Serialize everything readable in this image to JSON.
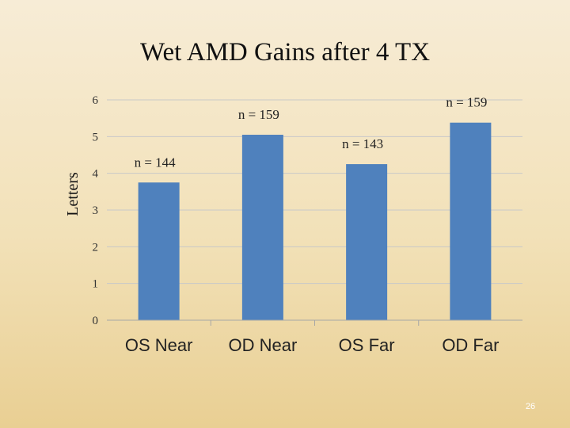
{
  "slide": {
    "title": "Wet AMD Gains after 4 TX",
    "page_number": "26"
  },
  "chart_data": {
    "type": "bar",
    "title": "Wet AMD Gains after 4 TX",
    "xlabel": "",
    "ylabel": "Letters",
    "categories": [
      "OS Near",
      "OD Near",
      "OS Far",
      "OD Far"
    ],
    "values": [
      3.75,
      5.05,
      4.25,
      5.38
    ],
    "annotations": [
      "n = 144",
      "n = 159",
      "n = 143",
      "n = 159"
    ],
    "y_tick_labels": [
      "0",
      "1",
      "2",
      "3",
      "4",
      "5",
      "6"
    ],
    "ylim": [
      0,
      6
    ],
    "grid": true,
    "legend": "none",
    "bar_color": "#4f81bd",
    "grid_color": "#c8c8c8"
  }
}
